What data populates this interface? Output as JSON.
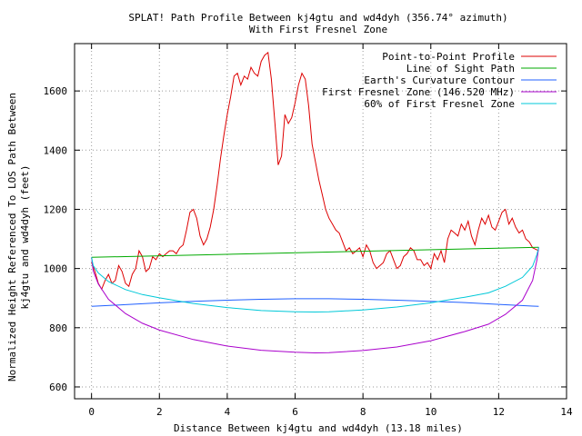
{
  "chart_data": {
    "type": "line",
    "title": "SPLAT! Path Profile Between kj4gtu and wd4dyh (356.74° azimuth)",
    "subtitle": "With First Fresnel Zone",
    "xlabel": "Distance Between kj4gtu and wd4dyh (13.18 miles)",
    "ylabel_line1": "Normalized Height Referenced To LOS Path Between",
    "ylabel_line2": "kj4gtu and wd4dyh (feet)",
    "xlim": [
      -0.5,
      14
    ],
    "ylim": [
      560,
      1760
    ],
    "x_ticks": [
      "0",
      "2",
      "4",
      "6",
      "8",
      "10",
      "12",
      "14"
    ],
    "y_ticks": [
      "600",
      "800",
      "1000",
      "1200",
      "1400",
      "1600"
    ],
    "grid": true,
    "legend_position": "top-right",
    "colors": {
      "profile": "#dd0000",
      "los": "#00aa00",
      "curvature": "#2060ff",
      "fresnel": "#aa00cc",
      "fresnel60": "#00c8d8"
    },
    "series": [
      {
        "name": "Point-to-Point Profile",
        "key": "profile",
        "x": [
          0,
          0.1,
          0.2,
          0.3,
          0.4,
          0.5,
          0.6,
          0.7,
          0.8,
          0.9,
          1.0,
          1.1,
          1.2,
          1.3,
          1.4,
          1.5,
          1.6,
          1.7,
          1.8,
          1.9,
          2.0,
          2.1,
          2.2,
          2.3,
          2.4,
          2.5,
          2.6,
          2.7,
          2.8,
          2.9,
          3.0,
          3.1,
          3.2,
          3.3,
          3.4,
          3.5,
          3.6,
          3.7,
          3.8,
          3.9,
          4.0,
          4.1,
          4.2,
          4.3,
          4.4,
          4.5,
          4.6,
          4.7,
          4.8,
          4.9,
          5.0,
          5.1,
          5.2,
          5.3,
          5.4,
          5.5,
          5.6,
          5.7,
          5.8,
          5.9,
          6.0,
          6.1,
          6.2,
          6.3,
          6.4,
          6.5,
          6.6,
          6.7,
          6.8,
          6.9,
          7.0,
          7.1,
          7.2,
          7.3,
          7.4,
          7.5,
          7.6,
          7.7,
          7.8,
          7.9,
          8.0,
          8.1,
          8.2,
          8.3,
          8.4,
          8.5,
          8.6,
          8.7,
          8.8,
          8.9,
          9.0,
          9.1,
          9.2,
          9.3,
          9.4,
          9.5,
          9.6,
          9.7,
          9.8,
          9.9,
          10.0,
          10.1,
          10.2,
          10.3,
          10.4,
          10.5,
          10.6,
          10.7,
          10.8,
          10.9,
          11.0,
          11.1,
          11.2,
          11.3,
          11.4,
          11.5,
          11.6,
          11.7,
          11.8,
          11.9,
          12.0,
          12.1,
          12.2,
          12.3,
          12.4,
          12.5,
          12.6,
          12.7,
          12.8,
          12.9,
          13.0,
          13.18
        ],
        "values": [
          1020,
          990,
          950,
          930,
          960,
          980,
          950,
          960,
          1010,
          990,
          950,
          940,
          980,
          1000,
          1060,
          1040,
          990,
          1000,
          1040,
          1030,
          1050,
          1040,
          1050,
          1060,
          1060,
          1050,
          1070,
          1080,
          1130,
          1190,
          1200,
          1170,
          1110,
          1080,
          1100,
          1140,
          1200,
          1280,
          1370,
          1450,
          1520,
          1580,
          1650,
          1660,
          1620,
          1650,
          1640,
          1680,
          1660,
          1650,
          1700,
          1720,
          1730,
          1640,
          1500,
          1350,
          1380,
          1520,
          1490,
          1510,
          1560,
          1620,
          1660,
          1640,
          1550,
          1420,
          1360,
          1300,
          1250,
          1200,
          1170,
          1150,
          1130,
          1120,
          1090,
          1060,
          1070,
          1050,
          1060,
          1070,
          1040,
          1080,
          1060,
          1020,
          1000,
          1010,
          1020,
          1050,
          1060,
          1030,
          1000,
          1010,
          1040,
          1050,
          1070,
          1060,
          1030,
          1030,
          1010,
          1020,
          1000,
          1050,
          1030,
          1060,
          1020,
          1100,
          1130,
          1120,
          1110,
          1150,
          1130,
          1160,
          1110,
          1080,
          1130,
          1170,
          1150,
          1180,
          1140,
          1130,
          1160,
          1190,
          1200,
          1150,
          1170,
          1140,
          1120,
          1130,
          1100,
          1090,
          1070,
          1060
        ]
      },
      {
        "name": "Line of Sight Path",
        "key": "los",
        "x": [
          0,
          13.18
        ],
        "values": [
          1038,
          1072
        ]
      },
      {
        "name": "Earth's Curvature Contour",
        "key": "curvature",
        "x": [
          0,
          1,
          2,
          3,
          4,
          5,
          6,
          6.59,
          7,
          8,
          9,
          10,
          11,
          12,
          13,
          13.18
        ],
        "values": [
          872,
          878,
          884,
          889,
          893,
          896,
          898,
          898,
          898,
          896,
          893,
          889,
          885,
          879,
          873,
          872
        ]
      },
      {
        "name": "First Fresnel Zone (146.520 MHz)",
        "key": "fresnel",
        "x": [
          0,
          0.05,
          0.2,
          0.5,
          1,
          1.5,
          2,
          3,
          4,
          5,
          6,
          6.59,
          7,
          8,
          9,
          10,
          11,
          11.7,
          12.2,
          12.7,
          13,
          13.13,
          13.18
        ],
        "values": [
          1038,
          992,
          948,
          896,
          848,
          815,
          792,
          760,
          738,
          724,
          717,
          715,
          716,
          723,
          735,
          756,
          787,
          812,
          845,
          893,
          960,
          1030,
          1072
        ]
      },
      {
        "name": "60% of First Fresnel Zone",
        "key": "fresnel60",
        "x": [
          0,
          0.05,
          0.2,
          0.5,
          1,
          1.5,
          2,
          3,
          4,
          5,
          6,
          6.59,
          7,
          8,
          9,
          10,
          11,
          11.7,
          12.2,
          12.7,
          13,
          13.13,
          13.18
        ],
        "values": [
          1038,
          1010,
          985,
          956,
          929,
          912,
          901,
          882,
          868,
          858,
          854,
          853,
          854,
          860,
          870,
          884,
          903,
          918,
          940,
          970,
          1008,
          1048,
          1072
        ]
      }
    ]
  }
}
